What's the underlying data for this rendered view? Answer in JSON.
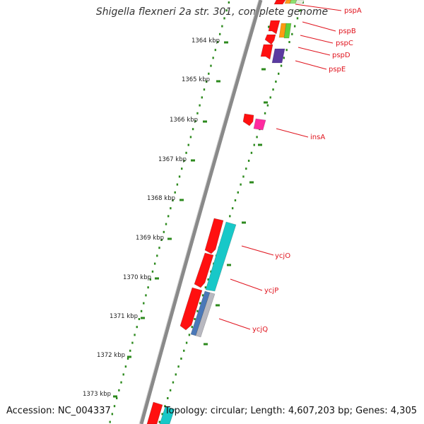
{
  "header": {
    "title": "Shigella flexneri 2a str. 301, complete genome"
  },
  "footer": {
    "accession": "Accession: NC_004337",
    "topology": "Topology: circular; Length: 4,607,203 bp; Genes: 4,305"
  },
  "colors": {
    "backbone": "#7a7a7a",
    "tick": "#2d8a1e",
    "forward_gene": "#ff1010",
    "label": "#e0141e"
  },
  "kbp_labels": [
    "1364 kbp",
    "1365 kbp",
    "1366 kbp",
    "1367 kbp",
    "1368 kbp",
    "1369 kbp",
    "1370 kbp",
    "1371 kbp",
    "1372 kbp",
    "1373 kbp"
  ],
  "genes": [
    "pspA",
    "pspB",
    "pspC",
    "pspD",
    "pspE",
    "insA",
    "ycjO",
    "ycjP",
    "ycjQ"
  ]
}
